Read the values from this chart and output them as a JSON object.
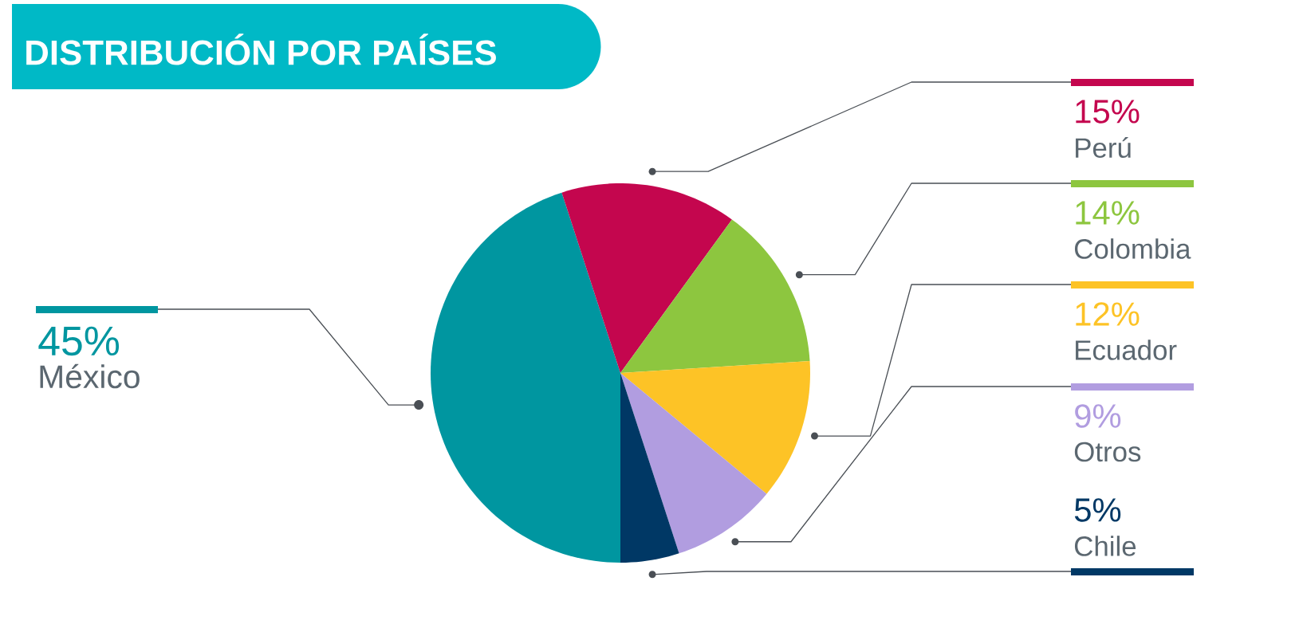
{
  "chart_data": {
    "type": "pie",
    "title": "DISTRIBUCIÓN POR PAÍSES",
    "categories": [
      "México",
      "Perú",
      "Colombia",
      "Ecuador",
      "Otros",
      "Chile"
    ],
    "values": [
      45,
      15,
      14,
      12,
      9,
      5
    ],
    "value_labels": [
      "45%",
      "15%",
      "14%",
      "12%",
      "9%",
      "5%"
    ],
    "colors": [
      "#0096a0",
      "#c4064e",
      "#8dc63f",
      "#fdc326",
      "#b19de0",
      "#003865"
    ]
  }
}
